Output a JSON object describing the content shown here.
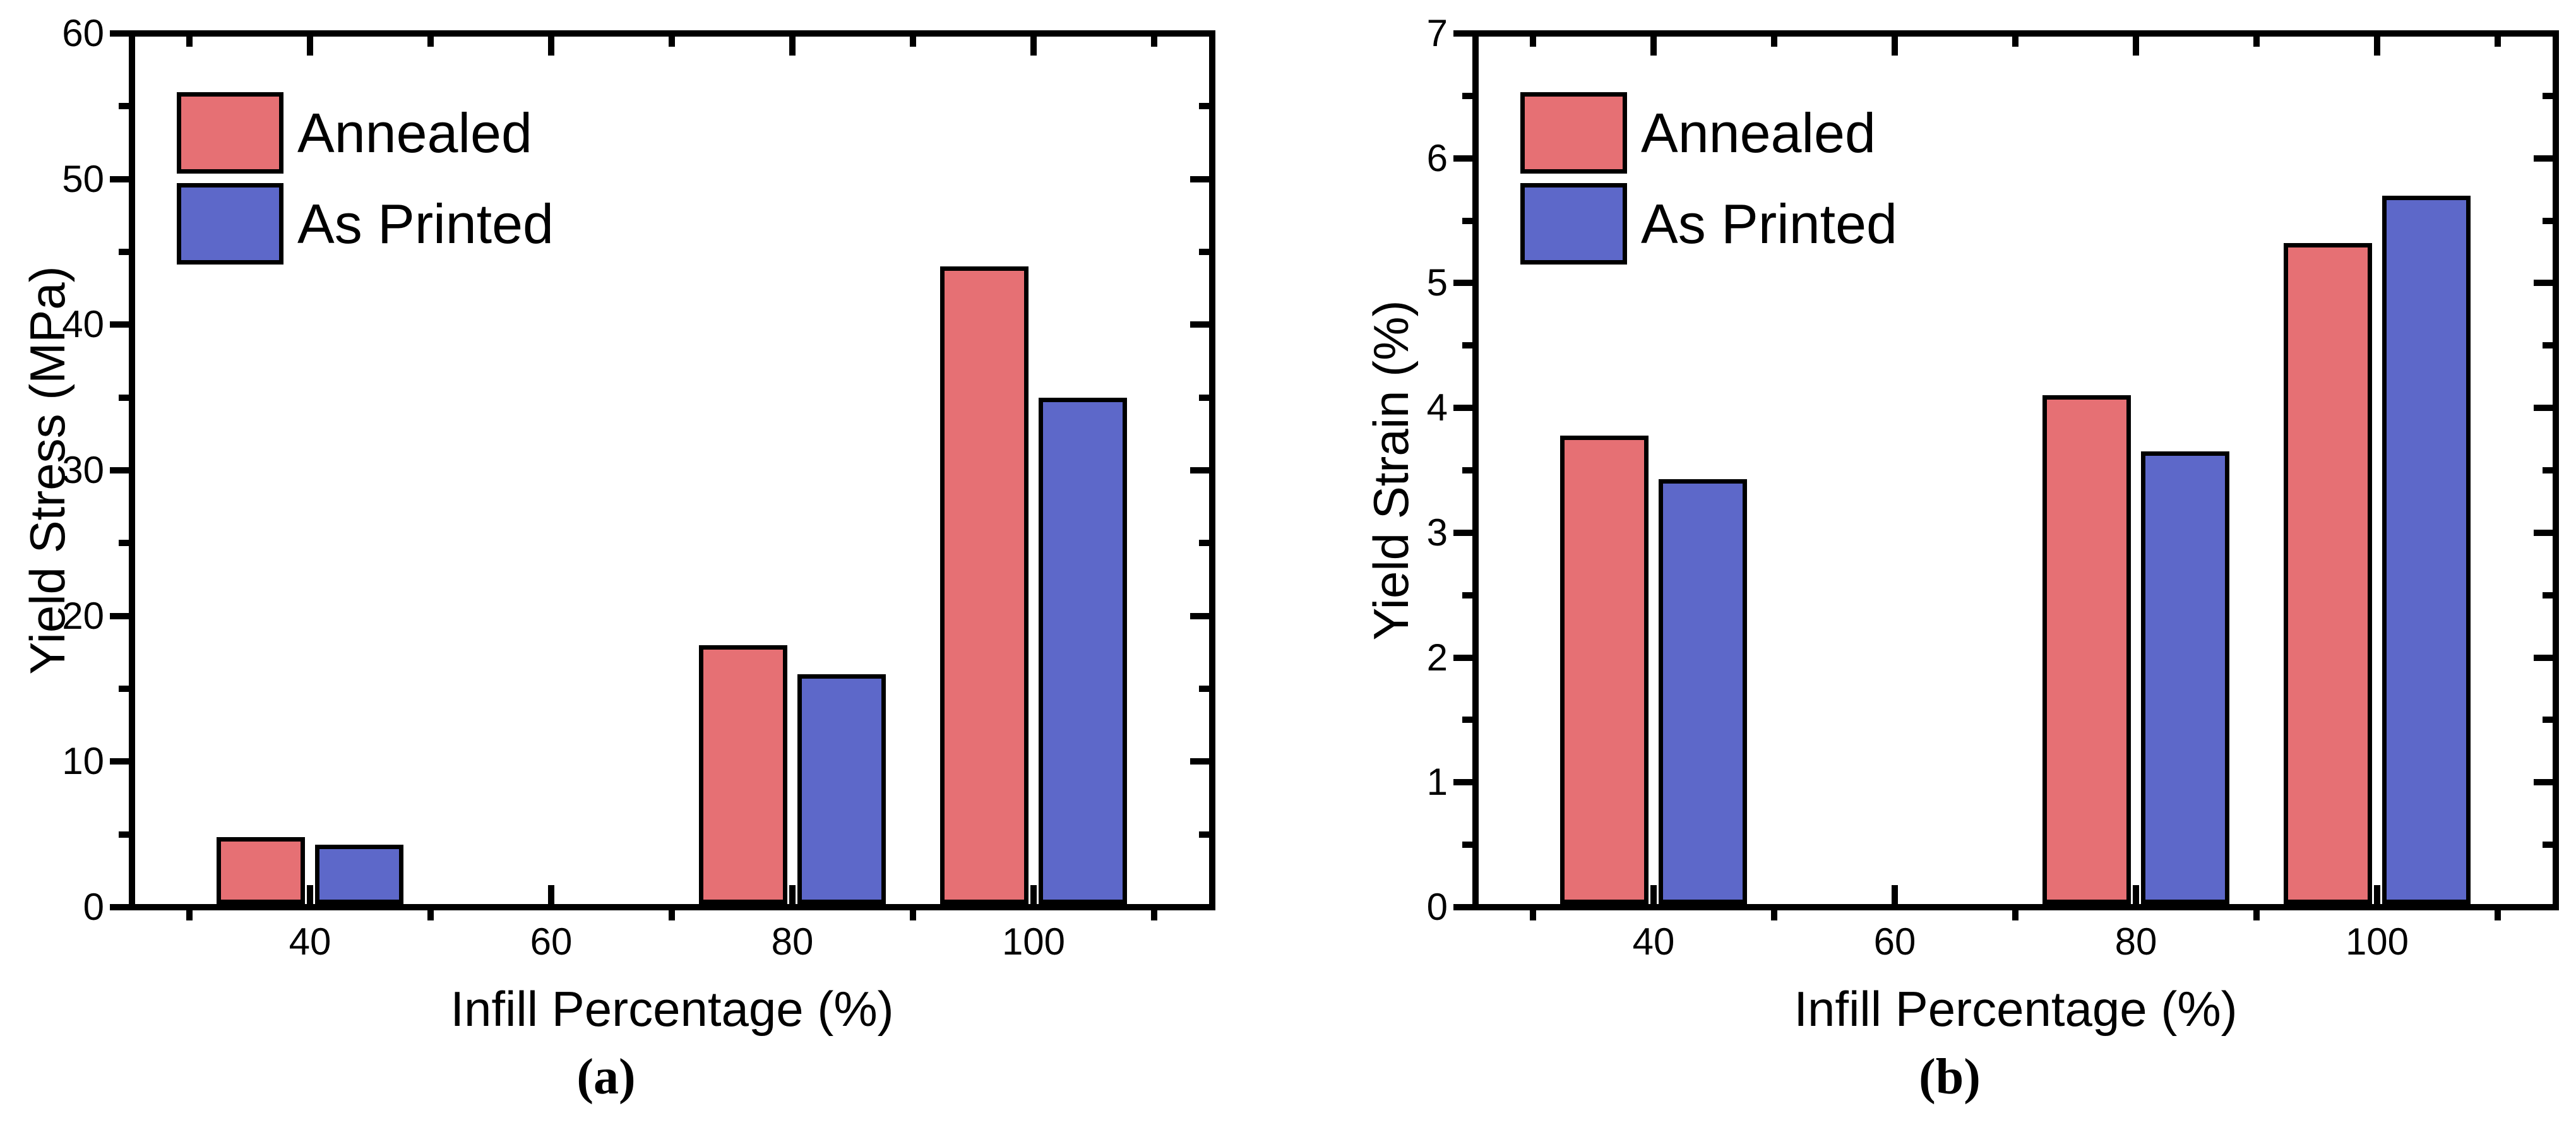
{
  "chart_data": [
    {
      "type": "bar",
      "panel": "(a)",
      "title": "",
      "xlabel": "Infill Percentage (%)",
      "ylabel": "Yield Stress (MPa)",
      "categories": [
        40,
        60,
        80,
        100
      ],
      "x_minor_ticks": [
        30,
        50,
        70,
        90,
        110
      ],
      "series": [
        {
          "name": "Annealed",
          "color": "#E67074",
          "values": [
            4.8,
            null,
            18,
            44
          ]
        },
        {
          "name": "As Printed",
          "color": "#5D68C9",
          "values": [
            4.3,
            null,
            16,
            35
          ]
        }
      ],
      "ylim": [
        0,
        60
      ],
      "y_major_step": 10,
      "y_minor_step": 5,
      "y_tick_labels": [
        "0",
        "10",
        "20",
        "30",
        "40",
        "50",
        "60"
      ],
      "grid": false,
      "legend_position": "top-left",
      "bar_edge_color": "#000000",
      "axis_color": "#000000"
    },
    {
      "type": "bar",
      "panel": "(b)",
      "title": "",
      "xlabel": "Infill Percentage (%)",
      "ylabel": "Yield Strain (%)",
      "categories": [
        40,
        60,
        80,
        100
      ],
      "x_minor_ticks": [
        30,
        50,
        70,
        90,
        110
      ],
      "series": [
        {
          "name": "Annealed",
          "color": "#E67074",
          "values": [
            3.78,
            null,
            4.1,
            5.32
          ]
        },
        {
          "name": "As Printed",
          "color": "#5D68C9",
          "values": [
            3.43,
            null,
            3.65,
            5.7
          ]
        }
      ],
      "ylim": [
        0,
        7
      ],
      "y_major_step": 1,
      "y_minor_step": 0.5,
      "y_tick_labels": [
        "0",
        "1",
        "2",
        "3",
        "4",
        "5",
        "6",
        "7"
      ],
      "grid": false,
      "legend_position": "top-left",
      "bar_edge_color": "#000000",
      "axis_color": "#000000"
    }
  ]
}
